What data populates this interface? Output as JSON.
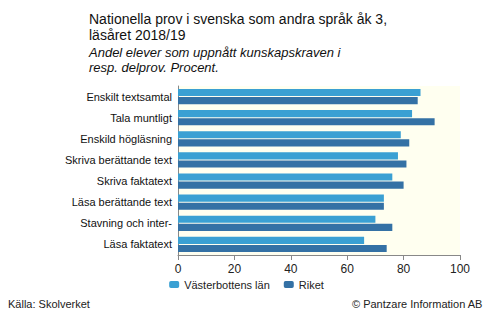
{
  "chart_data": {
    "type": "bar",
    "orientation": "horizontal",
    "title": "Nationella prov i svenska som andra språk åk 3, läsåret 2018/19",
    "subtitle": "Andel elever som uppnått kunskapskraven i resp. delprov. Procent.",
    "categories": [
      "Enskilt textsamtal",
      "Tala muntligt",
      "Enskild högläsning",
      "Skriva berättande text",
      "Skriva faktatext",
      "Läsa berättande text",
      "Stavning och inter-",
      "Läsa faktatext"
    ],
    "series": [
      {
        "name": "Västerbottens län",
        "color": "#3aa0d3",
        "values": [
          86,
          83,
          79,
          78,
          76,
          73,
          70,
          66
        ]
      },
      {
        "name": "Riket",
        "color": "#3471a5",
        "values": [
          85,
          91,
          82,
          81,
          80,
          73,
          76,
          74
        ]
      }
    ],
    "xlim": [
      0,
      100
    ],
    "xticks": [
      0,
      20,
      40,
      60,
      80,
      100
    ],
    "grid": false,
    "legend": "bottom",
    "source": "Källa: Skolverket",
    "credit": "© Pantzare Information AB"
  }
}
